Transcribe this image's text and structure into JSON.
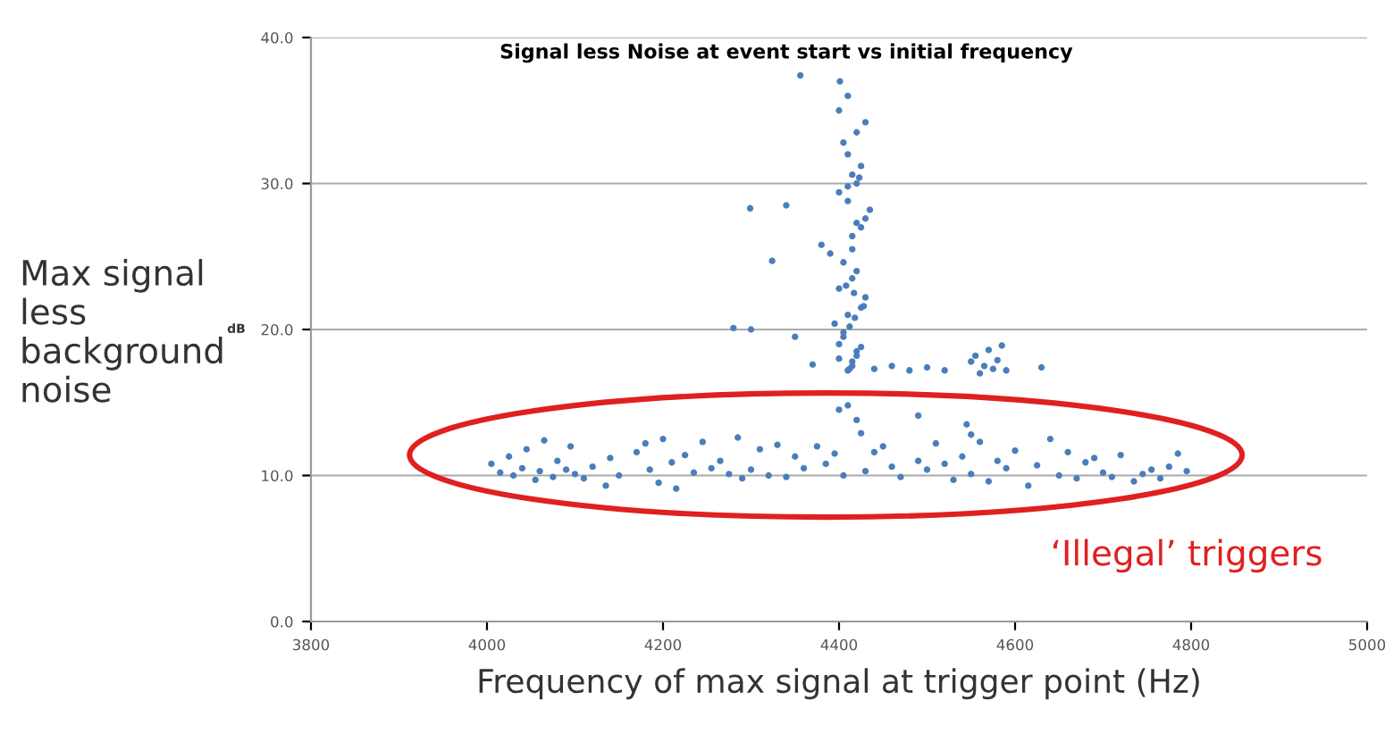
{
  "chart_data": {
    "type": "scatter",
    "title": "Signal less Noise at event start vs initial frequency",
    "xlabel": "Frequency of max signal at trigger point (Hz)",
    "ylabel": "Max signal less background noise",
    "annotations": [
      "dB",
      "‘Illegal’ triggers"
    ],
    "xlim": [
      3800,
      5000
    ],
    "xticks": [
      3800,
      4000,
      4200,
      4400,
      4600,
      4800,
      5000
    ],
    "ylim": [
      0,
      40
    ],
    "yticks": [
      {
        "value": 0,
        "label": "0.0"
      },
      {
        "value": 10,
        "label": "10.0"
      },
      {
        "value": 20,
        "label": "20.0"
      },
      {
        "value": 30,
        "label": "30.0"
      },
      {
        "value": 40,
        "label": "40.0"
      }
    ],
    "grid": "y",
    "marker": "circle",
    "series": [
      {
        "color": "#4a7ebb",
        "x": [
          4005,
          4015,
          4025,
          4030,
          4040,
          4045,
          4055,
          4060,
          4065,
          4075,
          4080,
          4090,
          4095,
          4100,
          4110,
          4120,
          4135,
          4140,
          4150,
          4170,
          4180,
          4185,
          4195,
          4200,
          4210,
          4215,
          4225,
          4235,
          4245,
          4255,
          4265,
          4275,
          4285,
          4290,
          4300,
          4310,
          4320,
          4330,
          4340,
          4350,
          4360,
          4375,
          4385,
          4395,
          4405,
          4430,
          4440,
          4450,
          4460,
          4470,
          4490,
          4500,
          4510,
          4520,
          4530,
          4540,
          4550,
          4560,
          4570,
          4580,
          4590,
          4600,
          4615,
          4625,
          4640,
          4650,
          4660,
          4670,
          4680,
          4690,
          4700,
          4710,
          4720,
          4735,
          4745,
          4755,
          4765,
          4775,
          4785,
          4795,
          4400,
          4410,
          4420,
          4425,
          4490,
          4545,
          4550,
          4410,
          4415,
          4420,
          4400,
          4405,
          4395,
          4410,
          4425,
          4430,
          4400,
          4415,
          4420,
          4405,
          4390,
          4380,
          4415,
          4425,
          4430,
          4435,
          4410,
          4400,
          4420,
          4415,
          4425,
          4410,
          4405,
          4420,
          4430,
          4400,
          4410,
          4415,
          4420,
          4425,
          4405,
          4412,
          4418,
          4428,
          4408,
          4415,
          4420,
          4410,
          4423,
          4400,
          4417,
          4412,
          4356,
          4401,
          4299,
          4340,
          4324,
          4350,
          4370,
          4440,
          4460,
          4480,
          4500,
          4520,
          4550,
          4555,
          4560,
          4565,
          4570,
          4575,
          4580,
          4585,
          4590,
          4630,
          4280,
          4300
        ],
        "values": [
          10.8,
          10.2,
          11.3,
          10.0,
          10.5,
          11.8,
          9.7,
          10.3,
          12.4,
          9.9,
          11.0,
          10.4,
          12.0,
          10.1,
          9.8,
          10.6,
          9.3,
          11.2,
          10.0,
          11.6,
          12.2,
          10.4,
          9.5,
          12.5,
          10.9,
          9.1,
          11.4,
          10.2,
          12.3,
          10.5,
          11.0,
          10.1,
          12.6,
          9.8,
          10.4,
          11.8,
          10.0,
          12.1,
          9.9,
          11.3,
          10.5,
          12.0,
          10.8,
          11.5,
          10.0,
          10.3,
          11.6,
          12.0,
          10.6,
          9.9,
          11.0,
          10.4,
          12.2,
          10.8,
          9.7,
          11.3,
          10.1,
          12.3,
          9.6,
          11.0,
          10.5,
          11.7,
          9.3,
          10.7,
          12.5,
          10.0,
          11.6,
          9.8,
          10.9,
          11.2,
          10.2,
          9.9,
          11.4,
          9.6,
          10.1,
          10.4,
          9.8,
          10.6,
          11.5,
          10.3,
          14.5,
          14.8,
          13.8,
          12.9,
          14.1,
          13.5,
          12.8,
          17.2,
          17.8,
          18.5,
          19.0,
          19.8,
          20.4,
          21.0,
          21.5,
          22.2,
          22.8,
          23.5,
          24.0,
          24.6,
          25.2,
          25.8,
          26.4,
          27.0,
          27.6,
          28.2,
          28.8,
          29.4,
          30.0,
          30.6,
          31.2,
          32.0,
          32.8,
          33.5,
          34.2,
          35.0,
          36.0,
          17.5,
          18.2,
          18.8,
          19.5,
          20.2,
          20.8,
          21.6,
          23.0,
          25.5,
          27.3,
          29.8,
          30.4,
          18.0,
          22.5,
          17.3,
          37.4,
          37.0,
          28.3,
          28.5,
          24.7,
          19.5,
          17.6,
          17.3,
          17.5,
          17.2,
          17.4,
          17.2,
          17.8,
          18.2,
          17.0,
          17.5,
          18.6,
          17.3,
          17.9,
          18.9,
          17.2,
          17.4,
          20.1,
          20.0
        ]
      }
    ]
  }
}
